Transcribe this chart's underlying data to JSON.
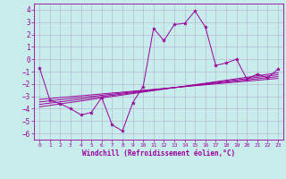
{
  "xlabel": "Windchill (Refroidissement éolien,°C)",
  "xlim": [
    -0.5,
    23.5
  ],
  "ylim": [
    -6.5,
    4.5
  ],
  "yticks": [
    -6,
    -5,
    -4,
    -3,
    -2,
    -1,
    0,
    1,
    2,
    3,
    4
  ],
  "xticks": [
    0,
    1,
    2,
    3,
    4,
    5,
    6,
    7,
    8,
    9,
    10,
    11,
    12,
    13,
    14,
    15,
    16,
    17,
    18,
    19,
    20,
    21,
    22,
    23
  ],
  "bg_color": "#c8ecec",
  "grid_color": "#b0b0cc",
  "line_color": "#990099",
  "data_x": [
    0,
    1,
    2,
    3,
    4,
    5,
    6,
    7,
    8,
    9,
    10,
    11,
    12,
    13,
    14,
    15,
    16,
    17,
    18,
    19,
    20,
    21,
    22,
    23
  ],
  "data_y": [
    -0.7,
    -3.3,
    -3.6,
    -4.0,
    -4.5,
    -4.3,
    -3.1,
    -5.3,
    -5.8,
    -3.5,
    -2.2,
    2.5,
    1.5,
    2.8,
    2.9,
    3.9,
    2.6,
    -0.5,
    -0.3,
    0.0,
    -1.6,
    -1.2,
    -1.5,
    -0.8
  ],
  "reg_lines": [
    {
      "x0": 0,
      "y0": -3.25,
      "x1": 23,
      "y1": -1.55
    },
    {
      "x0": 0,
      "y0": -3.45,
      "x1": 23,
      "y1": -1.4
    },
    {
      "x0": 0,
      "y0": -3.65,
      "x1": 23,
      "y1": -1.25
    },
    {
      "x0": 0,
      "y0": -3.85,
      "x1": 23,
      "y1": -1.1
    }
  ]
}
